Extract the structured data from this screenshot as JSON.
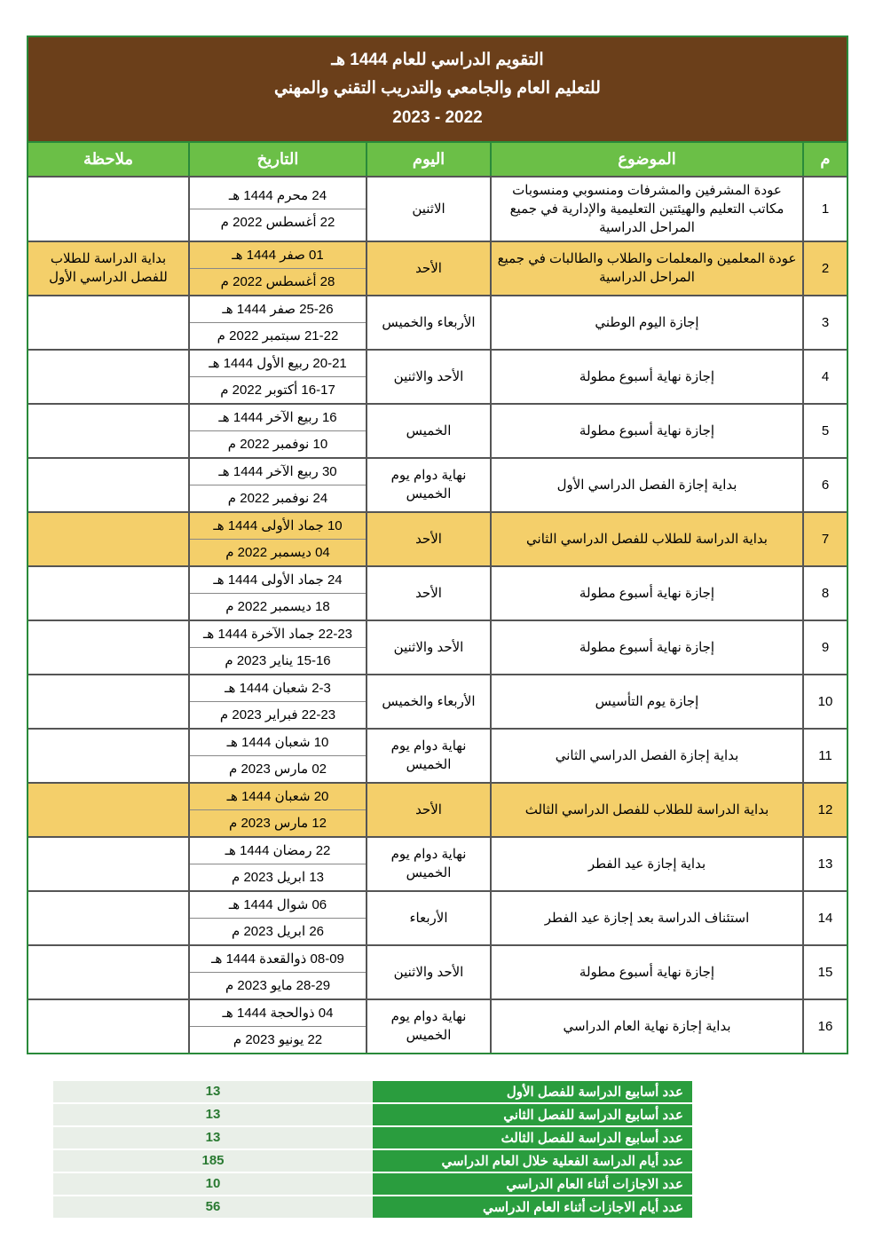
{
  "title": {
    "line1": "التقويم الدراسي للعام 1444 هـ",
    "line2": "للتعليم العام والجامعي والتدريب التقني والمهني",
    "line3": "2022 - 2023"
  },
  "headers": {
    "idx": "م",
    "subject": "الموضوع",
    "day": "اليوم",
    "date": "التاريخ",
    "note": "ملاحظة"
  },
  "rows": [
    {
      "i": "1",
      "subject": "عودة المشرفين والمشرفات ومنسوبي ومنسوبات مكاتب التعليم والهيئتين التعليمية والإدارية في جميع المراحل الدراسية",
      "day": "الاثنين",
      "h": "24 محرم 1444 هـ",
      "g": "22 أغسطس 2022 م",
      "note": "",
      "hl": false
    },
    {
      "i": "2",
      "subject": "عودة المعلمين والمعلمات والطلاب والطالبات في جميع المراحل الدراسية",
      "day": "الأحد",
      "h": "01 صفر 1444 هـ",
      "g": "28 أغسطس 2022 م",
      "note": "بداية الدراسة للطلاب للفصل الدراسي الأول",
      "hl": true
    },
    {
      "i": "3",
      "subject": "إجازة اليوم الوطني",
      "day": "الأربعاء والخميس",
      "h": "25-26 صفر 1444 هـ",
      "g": "21-22 سبتمبر 2022 م",
      "note": "",
      "hl": false
    },
    {
      "i": "4",
      "subject": "إجازة نهاية أسبوع مطولة",
      "day": "الأحد والاثنين",
      "h": "20-21 ربيع الأول 1444 هـ",
      "g": "16-17 أكتوبر 2022 م",
      "note": "",
      "hl": false
    },
    {
      "i": "5",
      "subject": "إجازة نهاية أسبوع مطولة",
      "day": "الخميس",
      "h": "16 ربيع الآخر 1444 هـ",
      "g": "10 نوفمبر 2022 م",
      "note": "",
      "hl": false
    },
    {
      "i": "6",
      "subject": "بداية إجازة الفصل الدراسي الأول",
      "day": "نهاية دوام يوم الخميس",
      "h": "30 ربيع الآخر 1444 هـ",
      "g": "24 نوفمبر 2022 م",
      "note": "",
      "hl": false
    },
    {
      "i": "7",
      "subject": "بداية الدراسة للطلاب للفصل الدراسي الثاني",
      "day": "الأحد",
      "h": "10 جماد الأولى 1444 هـ",
      "g": "04 ديسمبر 2022 م",
      "note": "",
      "hl": true
    },
    {
      "i": "8",
      "subject": "إجازة نهاية أسبوع مطولة",
      "day": "الأحد",
      "h": "24 جماد الأولى 1444 هـ",
      "g": "18 ديسمبر 2022 م",
      "note": "",
      "hl": false
    },
    {
      "i": "9",
      "subject": "إجازة نهاية أسبوع مطولة",
      "day": "الأحد والاثنين",
      "h": "22-23 جماد الآخرة 1444 هـ",
      "g": "15-16 يناير 2023 م",
      "note": "",
      "hl": false
    },
    {
      "i": "10",
      "subject": "إجازة يوم التأسيس",
      "day": "الأربعاء والخميس",
      "h": "2-3 شعبان 1444 هـ",
      "g": "22-23 فبراير 2023 م",
      "note": "",
      "hl": false
    },
    {
      "i": "11",
      "subject": "بداية إجازة الفصل الدراسي الثاني",
      "day": "نهاية دوام يوم الخميس",
      "h": "10 شعبان 1444 هـ",
      "g": "02 مارس 2023 م",
      "note": "",
      "hl": false
    },
    {
      "i": "12",
      "subject": "بداية الدراسة للطلاب للفصل الدراسي الثالث",
      "day": "الأحد",
      "h": "20 شعبان 1444 هـ",
      "g": "12 مارس 2023 م",
      "note": "",
      "hl": true
    },
    {
      "i": "13",
      "subject": "بداية إجازة عيد الفطر",
      "day": "نهاية دوام يوم الخميس",
      "h": "22 رمضان 1444 هـ",
      "g": "13 ابريل 2023 م",
      "note": "",
      "hl": false
    },
    {
      "i": "14",
      "subject": "استئناف الدراسة بعد إجازة عيد الفطر",
      "day": "الأربعاء",
      "h": "06 شوال 1444 هـ",
      "g": "26 ابريل 2023 م",
      "note": "",
      "hl": false
    },
    {
      "i": "15",
      "subject": "إجازة نهاية أسبوع مطولة",
      "day": "الأحد والاثنين",
      "h": "08-09 ذوالقعدة 1444 هـ",
      "g": "28-29 مايو 2023 م",
      "note": "",
      "hl": false
    },
    {
      "i": "16",
      "subject": "بداية إجازة نهاية العام الدراسي",
      "day": "نهاية دوام يوم الخميس",
      "h": "04 ذوالحجة 1444 هـ",
      "g": "22 يونيو 2023 م",
      "note": "",
      "hl": false
    }
  ],
  "summary": [
    {
      "label": "عدد أسابيع الدراسة للفصل الأول",
      "val": "13"
    },
    {
      "label": "عدد أسابيع الدراسة للفصل الثاني",
      "val": "13"
    },
    {
      "label": "عدد أسابيع الدراسة للفصل الثالث",
      "val": "13"
    },
    {
      "label": "عدد أيام الدراسة الفعلية خلال العام الدراسي",
      "val": "185"
    },
    {
      "label": "عدد الاجازات أثناء العام الدراسي",
      "val": "10"
    },
    {
      "label": "عدد أيام الاجازات أثناء العام الدراسي",
      "val": "56"
    }
  ],
  "colors": {
    "title_bg": "#6b3f1a",
    "title_fg": "#ffffff",
    "header_bg": "#6bbf47",
    "header_fg": "#ffffff",
    "border_outer": "#2a8a3a",
    "border_inner": "#555555",
    "highlight_bg": "#f4cf6a",
    "summary_label_bg": "#2a9d3e",
    "summary_val_bg": "#e9efe8",
    "summary_val_fg": "#2a7a32"
  }
}
